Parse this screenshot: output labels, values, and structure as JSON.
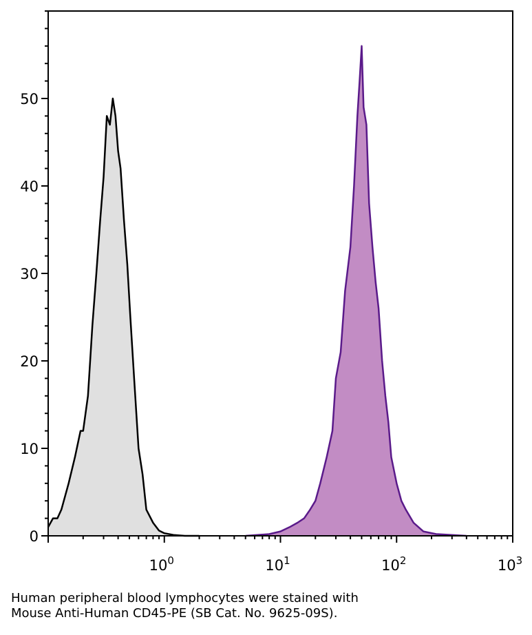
{
  "caption": {
    "line1": "Human peripheral blood lymphocytes were stained with",
    "line2": "Mouse Anti-Human CD45-PE (SB Cat. No. 9625-09S)."
  },
  "chart_data": {
    "type": "area",
    "title": "",
    "xlabel": "",
    "ylabel": "",
    "x_scale": "log",
    "xlim": [
      0.1,
      1000
    ],
    "ylim": [
      0,
      60
    ],
    "grid": false,
    "legend": "none",
    "x_ticks": [
      {
        "value": 1,
        "base": "10",
        "exp": "0"
      },
      {
        "value": 10,
        "base": "10",
        "exp": "1"
      },
      {
        "value": 100,
        "base": "10",
        "exp": "2"
      },
      {
        "value": 1000,
        "base": "10",
        "exp": "3"
      }
    ],
    "y_ticks": [
      0,
      10,
      20,
      30,
      40,
      50
    ],
    "series": [
      {
        "color": "#000000",
        "fill": "#e0e0e0",
        "x": [
          0.1,
          0.11,
          0.12,
          0.13,
          0.15,
          0.17,
          0.19,
          0.2,
          0.22,
          0.24,
          0.26,
          0.28,
          0.3,
          0.32,
          0.34,
          0.36,
          0.38,
          0.4,
          0.42,
          0.45,
          0.48,
          0.51,
          0.55,
          0.6,
          0.65,
          0.7,
          0.8,
          0.9,
          1.0,
          1.2,
          1.5,
          2.0
        ],
        "y": [
          1,
          2,
          2,
          3,
          6,
          9,
          12,
          12,
          16,
          24,
          30,
          36,
          41,
          48,
          47,
          50,
          48,
          44,
          42,
          36,
          31,
          25,
          18,
          10,
          7,
          3,
          1.5,
          0.6,
          0.3,
          0.1,
          0,
          0
        ]
      },
      {
        "color": "#5a1a8a",
        "fill": "#c28cc4",
        "x": [
          5,
          8,
          10,
          12,
          14,
          16,
          18,
          20,
          22,
          25,
          28,
          30,
          33,
          36,
          40,
          43,
          46,
          48,
          50,
          52,
          55,
          58,
          62,
          66,
          70,
          75,
          80,
          85,
          90,
          100,
          110,
          120,
          140,
          170,
          220,
          400
        ],
        "y": [
          0,
          0.2,
          0.5,
          1,
          1.5,
          2,
          3,
          4,
          6,
          9,
          12,
          18,
          21,
          28,
          33,
          40,
          48,
          52,
          56,
          49,
          47,
          38,
          33,
          29,
          26,
          20,
          16,
          13,
          9,
          6,
          4,
          3,
          1.5,
          0.5,
          0.2,
          0
        ]
      }
    ]
  }
}
